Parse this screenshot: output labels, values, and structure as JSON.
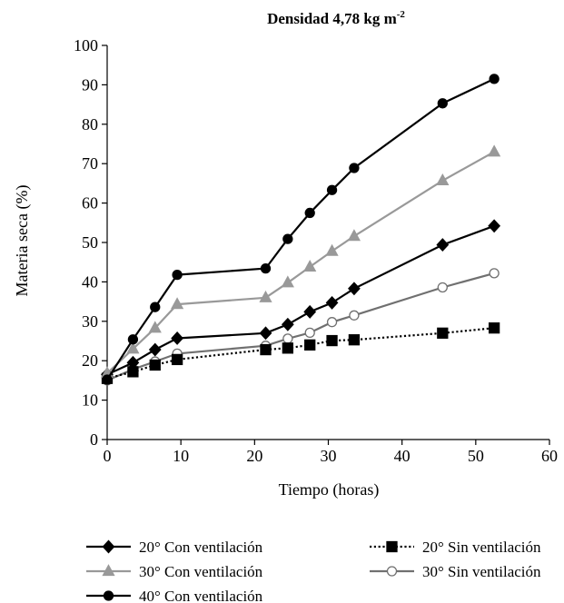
{
  "chart_data": {
    "type": "line",
    "title": "Densidad 4,78 kg m",
    "title_superscript": "-2",
    "xlabel": "Tiempo (horas)",
    "ylabel": "Materia seca (%)",
    "xlim": [
      0,
      60
    ],
    "ylim": [
      0,
      100
    ],
    "xticks": [
      0,
      10,
      20,
      30,
      40,
      50,
      60
    ],
    "yticks": [
      0,
      10,
      20,
      30,
      40,
      50,
      60,
      70,
      80,
      90,
      100
    ],
    "grid": false,
    "legend_position": "bottom",
    "series": [
      {
        "name": "20° Con ventilación",
        "color": "#000000",
        "dash": "solid",
        "marker": "diamond",
        "marker_fill": "#000000",
        "x": [
          0,
          3.5,
          6.5,
          9.5,
          21.5,
          24.5,
          27.5,
          30.5,
          33.5,
          45.5,
          52.5
        ],
        "y": [
          16.5,
          19.5,
          22.8,
          25.7,
          27.0,
          29.2,
          32.4,
          34.7,
          38.3,
          49.4,
          54.2
        ]
      },
      {
        "name": "20° Sin ventilación",
        "color": "#000000",
        "dash": "dotted",
        "marker": "square",
        "marker_fill": "#000000",
        "x": [
          0,
          3.5,
          6.5,
          9.5,
          21.5,
          24.5,
          27.5,
          30.5,
          33.5,
          45.5,
          52.5
        ],
        "y": [
          15.5,
          17.2,
          18.9,
          20.3,
          22.8,
          23.2,
          24.0,
          25.1,
          25.3,
          27.0,
          28.3
        ]
      },
      {
        "name": "30° Con ventilación",
        "color": "#999999",
        "dash": "solid",
        "marker": "triangle",
        "marker_fill": "#999999",
        "x": [
          0,
          3.5,
          6.5,
          9.5,
          21.5,
          24.5,
          27.5,
          30.5,
          33.5,
          45.5,
          52.5
        ],
        "y": [
          16.8,
          23.0,
          28.3,
          34.3,
          36.0,
          39.8,
          43.8,
          47.8,
          51.6,
          65.7,
          73.0
        ]
      },
      {
        "name": "30° Sin ventilación",
        "color": "#707070",
        "dash": "solid",
        "marker": "circle",
        "marker_fill": "#ffffff",
        "x": [
          0,
          3.5,
          6.5,
          9.5,
          21.5,
          24.5,
          27.5,
          30.5,
          33.5,
          45.5,
          52.5
        ],
        "y": [
          15.0,
          17.8,
          19.8,
          21.8,
          23.8,
          25.6,
          27.1,
          29.8,
          31.5,
          38.6,
          42.2
        ]
      },
      {
        "name": "40° Con ventilación",
        "color": "#000000",
        "dash": "solid",
        "marker": "circle",
        "marker_fill": "#000000",
        "x": [
          0,
          3.5,
          6.5,
          9.5,
          21.5,
          24.5,
          27.5,
          30.5,
          33.5,
          45.5,
          52.5
        ],
        "y": [
          15.2,
          25.4,
          33.6,
          41.8,
          43.4,
          50.9,
          57.5,
          63.3,
          68.9,
          85.3,
          91.5
        ]
      }
    ]
  }
}
